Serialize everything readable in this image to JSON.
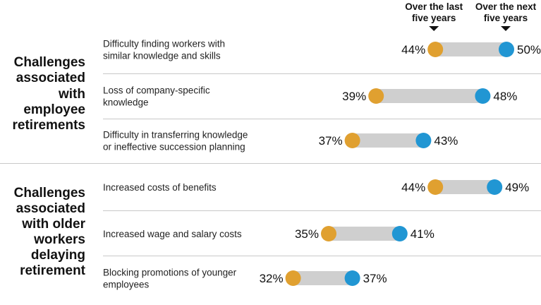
{
  "chart_data": {
    "type": "dumbbell",
    "legend": {
      "past_label_lines": [
        "Over the last",
        "five years"
      ],
      "future_label_lines": [
        "Over the next",
        "five years"
      ]
    },
    "colors": {
      "past": "#E0A030",
      "future": "#2196D3",
      "bar": "#CFCFCF",
      "divider": "#C8C8C8"
    },
    "value_suffix": "%",
    "groups": [
      {
        "label_lines": [
          "Challenges",
          "associated",
          "with",
          "employee",
          "retirements"
        ],
        "items": [
          {
            "label_lines": [
              "Difficulty finding workers with",
              "similar knowledge and skills"
            ],
            "past": 44,
            "future": 50
          },
          {
            "label_lines": [
              "Loss of company-specific",
              "knowledge"
            ],
            "past": 39,
            "future": 48
          },
          {
            "label_lines": [
              "Difficulty in transferring knowledge",
              "or ineffective succession planning"
            ],
            "past": 37,
            "future": 43
          }
        ]
      },
      {
        "label_lines": [
          "Challenges",
          "associated",
          "with older",
          "workers",
          "delaying",
          "retirement"
        ],
        "items": [
          {
            "label_lines": [
              "Increased costs of benefits"
            ],
            "past": 44,
            "future": 49
          },
          {
            "label_lines": [
              "Increased wage and salary costs"
            ],
            "past": 35,
            "future": 41
          },
          {
            "label_lines": [
              "Blocking promotions of younger",
              "employees"
            ],
            "past": 32,
            "future": 37
          }
        ]
      }
    ]
  }
}
